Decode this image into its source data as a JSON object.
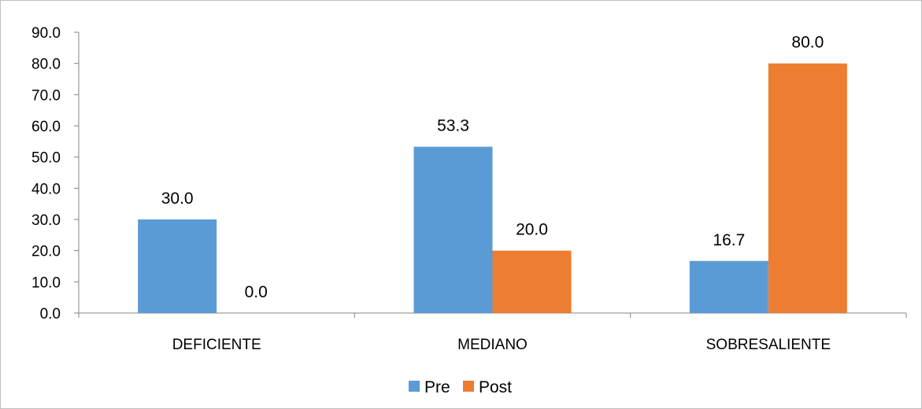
{
  "chart_data": {
    "type": "bar",
    "title": "",
    "xlabel": "",
    "ylabel": "",
    "categories": [
      "DEFICIENTE",
      "MEDIANO",
      "SOBRESALIENTE"
    ],
    "series": [
      {
        "name": "Pre",
        "values": [
          30.0,
          53.3,
          16.7
        ],
        "color": "#5b9bd5"
      },
      {
        "name": "Post",
        "values": [
          0.0,
          20.0,
          80.0
        ],
        "color": "#ed7d31"
      }
    ],
    "ylim": [
      0,
      90
    ],
    "y_ticks": [
      "0.0",
      "10.0",
      "20.0",
      "30.0",
      "40.0",
      "50.0",
      "60.0",
      "70.0",
      "80.0",
      "90.0"
    ],
    "data_labels": [
      [
        "30.0",
        "53.3",
        "16.7"
      ],
      [
        "0.0",
        "20.0",
        "80.0"
      ]
    ],
    "grid": false,
    "legend_position": "bottom"
  }
}
